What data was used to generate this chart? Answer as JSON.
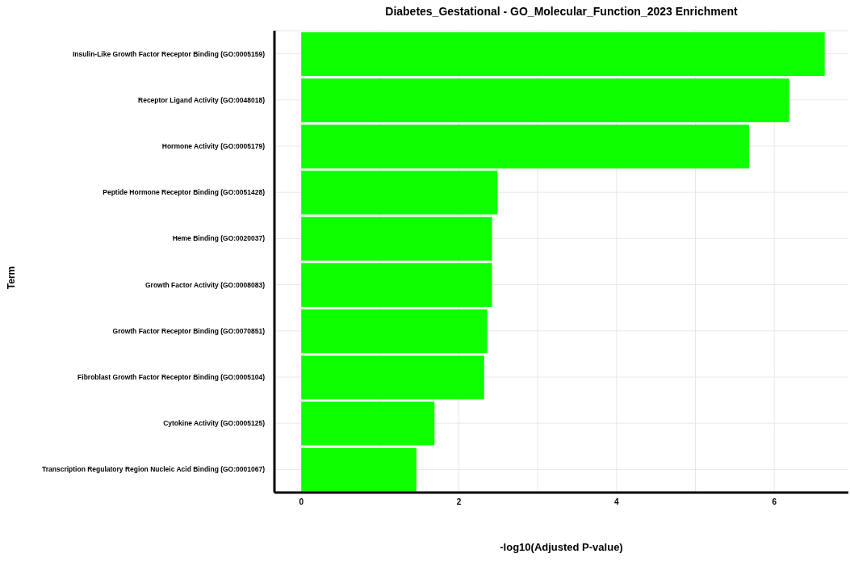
{
  "chart_data": {
    "type": "bar",
    "orientation": "horizontal",
    "title": "Diabetes_Gestational - GO_Molecular_Function_2023 Enrichment",
    "xlabel": "-log10(Adjusted P-value)",
    "ylabel": "Term",
    "categories": [
      "Insulin-Like Growth Factor Receptor Binding (GO:0005159)",
      "Receptor Ligand Activity (GO:0048018)",
      "Hormone Activity (GO:0005179)",
      "Peptide Hormone Receptor Binding (GO:0051428)",
      "Heme Binding (GO:0020037)",
      "Growth Factor Activity (GO:0008083)",
      "Growth Factor Receptor Binding (GO:0070851)",
      "Fibroblast Growth Factor Receptor Binding (GO:0005104)",
      "Cytokine Activity (GO:0005125)",
      "Transcription Regulatory Region Nucleic Acid Binding (GO:0001067)"
    ],
    "values": [
      6.64,
      6.19,
      5.68,
      2.49,
      2.42,
      2.42,
      2.36,
      2.32,
      1.69,
      1.46
    ],
    "color": "#0dff00",
    "xlim": [
      -0.34,
      6.94
    ],
    "xticks": [
      0,
      {
        "value": 1,
        "label": null
      },
      2,
      {
        "value": 3,
        "label": null
      },
      4,
      {
        "value": 5,
        "label": null
      },
      6
    ],
    "grid": true
  }
}
